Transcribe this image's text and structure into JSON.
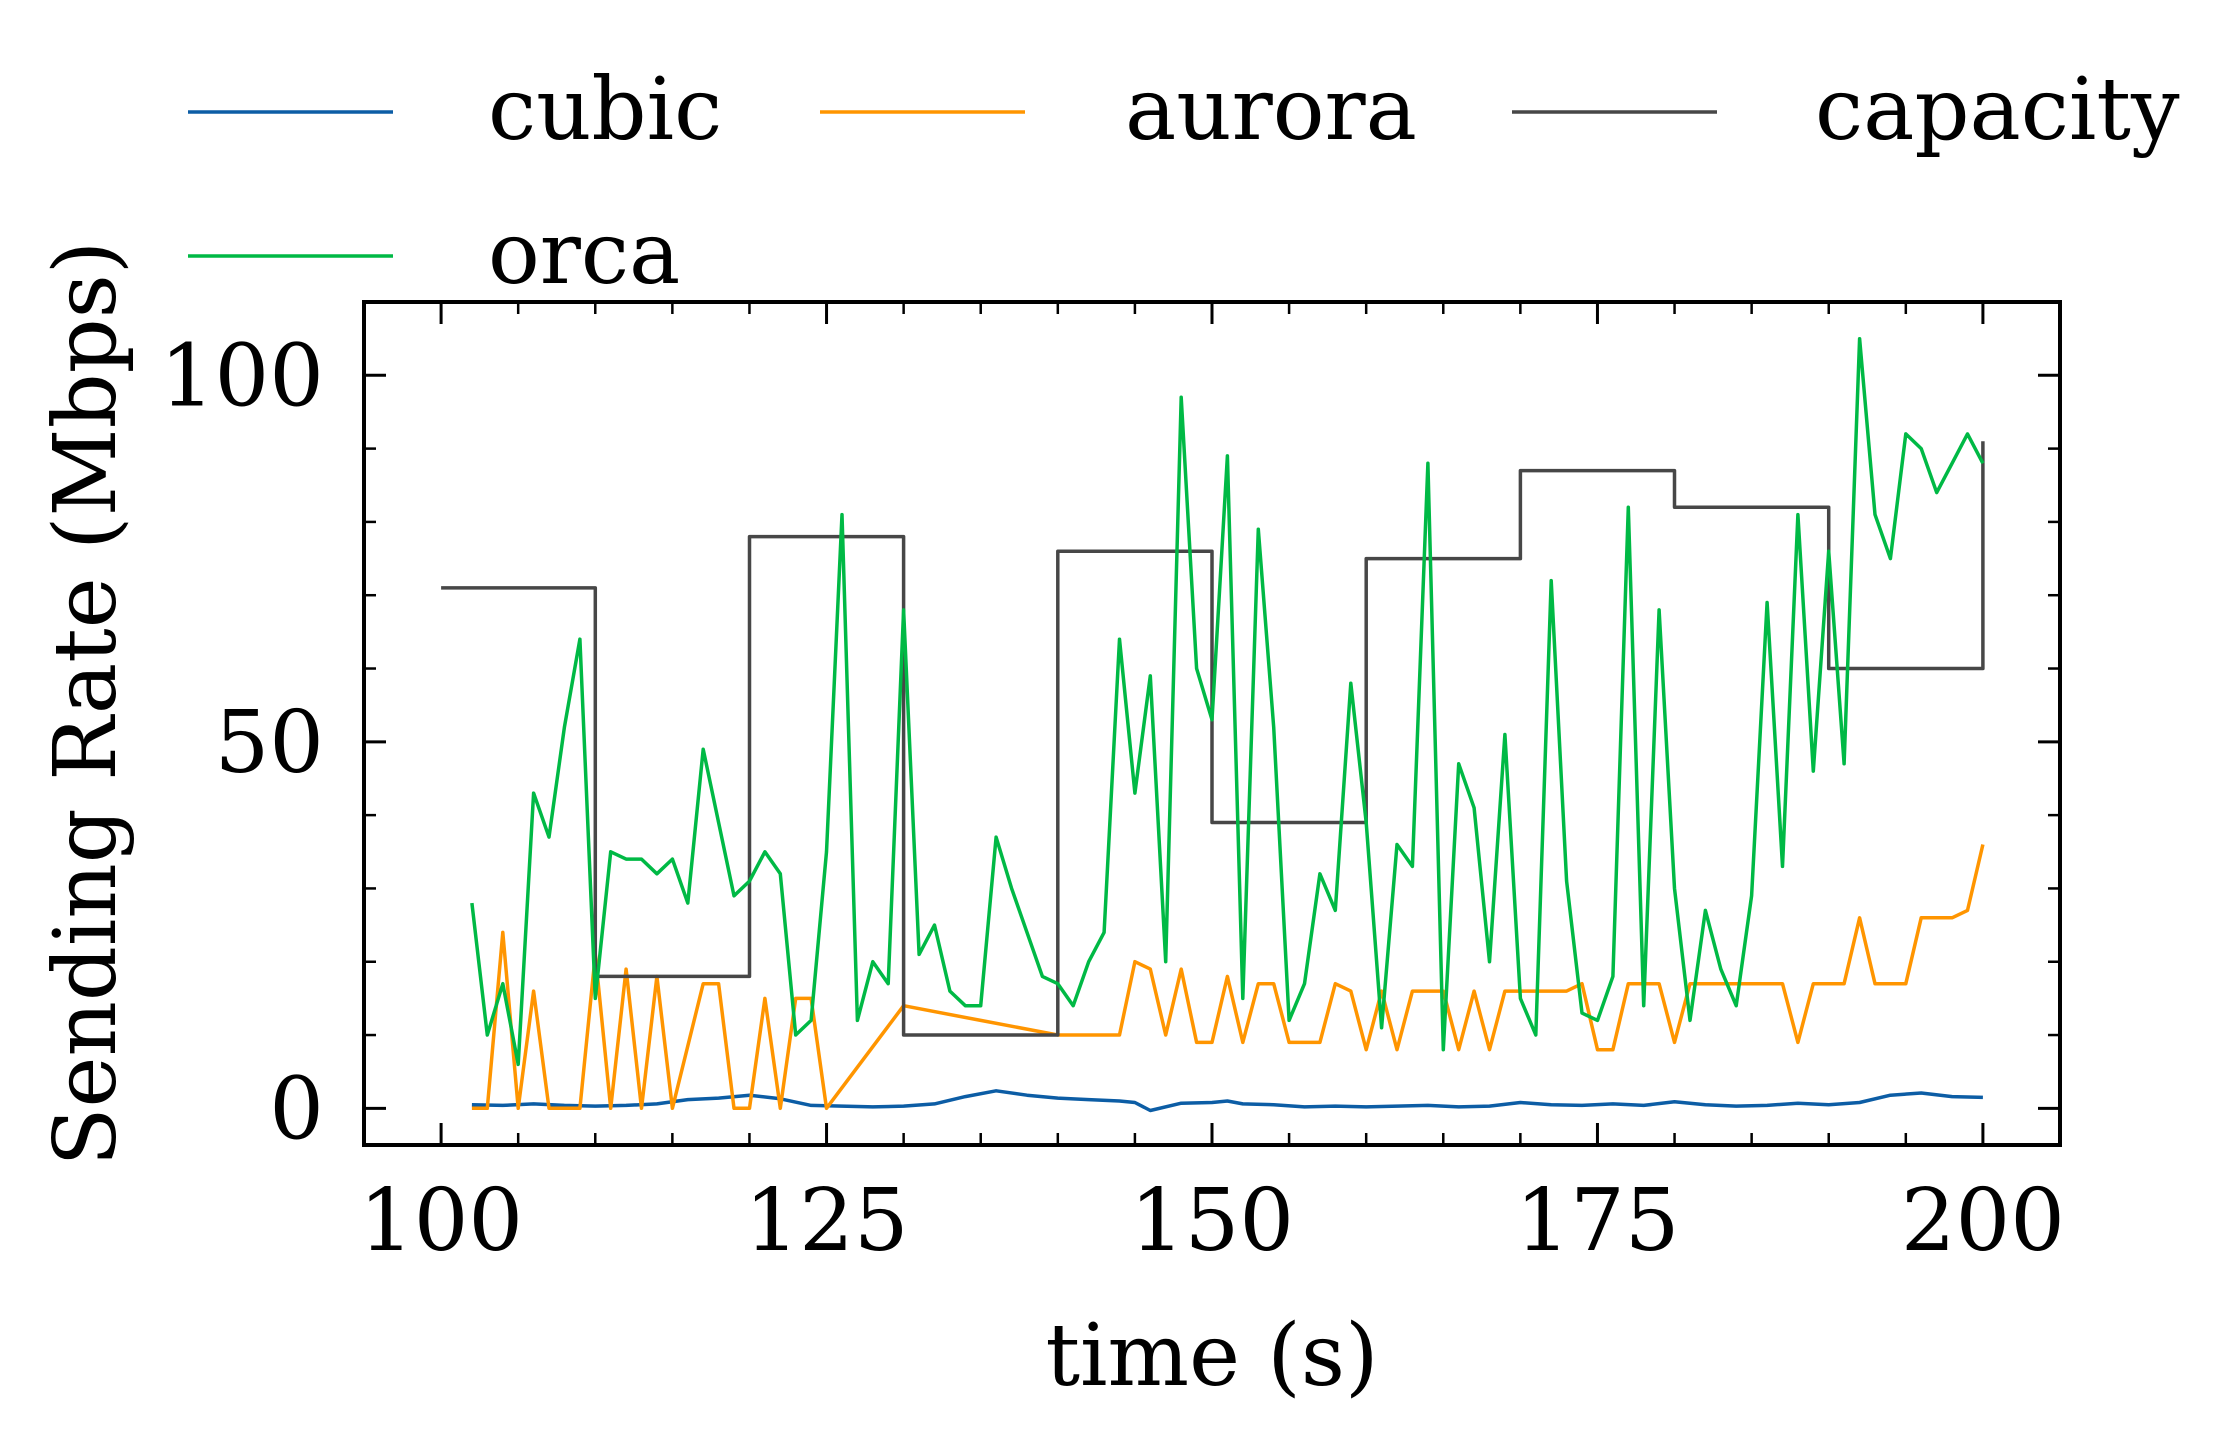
{
  "chart_data": {
    "type": "line",
    "title": "",
    "xlabel": "time (s)",
    "ylabel": "Sending Rate (Mbps)",
    "xlim": [
      95,
      205
    ],
    "ylim": [
      -5,
      110
    ],
    "xticks": [
      100,
      125,
      150,
      175,
      200
    ],
    "yticks": [
      0,
      50,
      100
    ],
    "grid": false,
    "legend_placement": "top, outside plot, 3 columns",
    "series": [
      {
        "name": "cubic",
        "color": "#0C5DA5",
        "x": [
          102,
          104,
          106,
          108,
          110,
          112,
          114,
          116,
          118,
          120,
          122,
          124,
          126,
          128,
          130,
          132,
          134,
          136,
          138,
          140,
          142,
          144,
          145,
          146,
          148,
          150,
          151,
          152,
          154,
          156,
          158,
          160,
          162,
          164,
          166,
          168,
          170,
          172,
          174,
          176,
          178,
          180,
          182,
          184,
          186,
          188,
          190,
          192,
          194,
          196,
          198,
          200
        ],
        "y": [
          0.5,
          0.4,
          0.6,
          0.4,
          0.3,
          0.4,
          0.6,
          1.2,
          1.4,
          1.8,
          1.3,
          0.4,
          0.3,
          0.2,
          0.3,
          0.6,
          1.6,
          2.4,
          1.8,
          1.4,
          1.2,
          1.0,
          0.8,
          -0.3,
          0.7,
          0.8,
          1.0,
          0.6,
          0.5,
          0.2,
          0.3,
          0.2,
          0.3,
          0.4,
          0.2,
          0.3,
          0.8,
          0.5,
          0.4,
          0.6,
          0.4,
          0.9,
          0.5,
          0.3,
          0.4,
          0.7,
          0.5,
          0.8,
          1.8,
          2.1,
          1.6,
          1.5
        ]
      },
      {
        "name": "aurora",
        "color": "#FF9500",
        "x": [
          102,
          103,
          104,
          105,
          106,
          107,
          109,
          110,
          111,
          112,
          113,
          114,
          115,
          117,
          118,
          119,
          120,
          121,
          122,
          123,
          124,
          125,
          130,
          135,
          140,
          144,
          145,
          146,
          147,
          148,
          149,
          150,
          151,
          152,
          153,
          154,
          155,
          156,
          157,
          158,
          159,
          160,
          161,
          162,
          163,
          164,
          165,
          166,
          167,
          168,
          169,
          170,
          171,
          172,
          173,
          174,
          175,
          176,
          177,
          178,
          179,
          180,
          181,
          183,
          185,
          186,
          187,
          188,
          189,
          190,
          191,
          192,
          193,
          194,
          195,
          196,
          197,
          198,
          199,
          200
        ],
        "y": [
          0,
          0,
          24,
          0,
          16,
          0,
          0,
          21,
          0,
          19,
          0,
          18,
          0,
          17,
          17,
          0,
          0,
          15,
          0,
          15,
          15,
          0,
          14,
          12,
          10,
          10,
          20,
          19,
          10,
          19,
          9,
          9,
          18,
          9,
          17,
          17,
          9,
          9,
          9,
          17,
          16,
          8,
          16,
          8,
          16,
          16,
          16,
          8,
          16,
          8,
          16,
          16,
          16,
          16,
          16,
          17,
          8,
          8,
          17,
          17,
          17,
          9,
          17,
          17,
          17,
          17,
          17,
          9,
          17,
          17,
          17,
          26,
          17,
          17,
          17,
          26,
          26,
          26,
          27,
          36
        ]
      },
      {
        "name": "capacity",
        "color": "#474747",
        "x": [
          100,
          110,
          110,
          120,
          120,
          130,
          130,
          140,
          140,
          150,
          150,
          160,
          160,
          170,
          170,
          180,
          180,
          190,
          190,
          200,
          200
        ],
        "y": [
          71,
          71,
          18,
          18,
          78,
          78,
          10,
          10,
          76,
          76,
          39,
          39,
          75,
          75,
          87,
          87,
          82,
          82,
          60,
          60,
          91
        ]
      },
      {
        "name": "orca",
        "color": "#00B945",
        "x": [
          102,
          103,
          104,
          105,
          106,
          107,
          108,
          109,
          110,
          111,
          112,
          113,
          114,
          115,
          116,
          117,
          118,
          119,
          120,
          121,
          122,
          123,
          124,
          125,
          126,
          127,
          128,
          129,
          130,
          131,
          132,
          133,
          134,
          135,
          136,
          137,
          138,
          139,
          140,
          141,
          142,
          143,
          144,
          145,
          146,
          147,
          148,
          149,
          150,
          151,
          152,
          153,
          154,
          155,
          156,
          157,
          158,
          159,
          160,
          161,
          162,
          163,
          164,
          165,
          166,
          167,
          168,
          169,
          170,
          171,
          172,
          173,
          174,
          175,
          176,
          177,
          178,
          179,
          180,
          181,
          182,
          183,
          184,
          185,
          186,
          187,
          188,
          189,
          190,
          191,
          192,
          193,
          194,
          195,
          196,
          197,
          198,
          199,
          200
        ],
        "y": [
          28,
          10,
          17,
          6,
          43,
          37,
          52,
          64,
          15,
          35,
          34,
          34,
          32,
          34,
          28,
          49,
          39,
          29,
          31,
          35,
          32,
          10,
          12,
          35,
          81,
          12,
          20,
          17,
          68,
          21,
          25,
          16,
          14,
          14,
          37,
          30,
          24,
          18,
          17,
          14,
          20,
          24,
          64,
          43,
          59,
          20,
          97,
          60,
          53,
          89,
          15,
          79,
          52,
          12,
          17,
          32,
          27,
          58,
          39,
          11,
          36,
          33,
          88,
          8,
          47,
          41,
          20,
          51,
          15,
          10,
          72,
          31,
          13,
          12,
          18,
          82,
          14,
          68,
          30,
          12,
          27,
          19,
          14,
          29,
          69,
          33,
          81,
          46,
          76,
          47,
          105,
          81,
          75,
          92,
          90,
          84,
          88,
          92,
          88
        ]
      }
    ]
  }
}
